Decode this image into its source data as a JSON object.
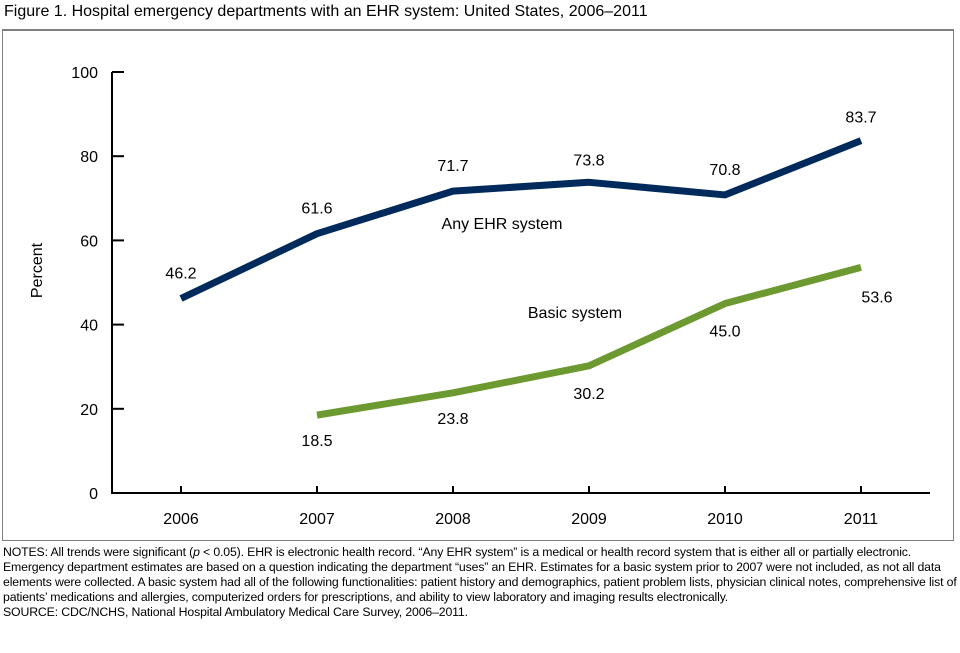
{
  "figure": {
    "title": "Figure 1. Hospital emergency departments with an EHR system: United States, 2006–2011"
  },
  "chart_data": {
    "type": "line",
    "title": "Figure 1. Hospital emergency departments with an EHR system: United States, 2006–2011",
    "xlabel": "",
    "ylabel": "Percent",
    "x": [
      "2006",
      "2007",
      "2008",
      "2009",
      "2010",
      "2011"
    ],
    "ylim": [
      0,
      100
    ],
    "yticks": [
      0,
      20,
      40,
      60,
      80,
      100
    ],
    "grid": false,
    "legend": "inline labels",
    "series": [
      {
        "name": "Any EHR system",
        "color": "#002a5c",
        "values": [
          46.2,
          61.6,
          71.7,
          73.8,
          70.8,
          83.7
        ],
        "labels": [
          "46.2",
          "61.6",
          "71.7",
          "73.8",
          "70.8",
          "83.7"
        ]
      },
      {
        "name": "Basic system",
        "color": "#6d9a30",
        "values": [
          null,
          18.5,
          23.8,
          30.2,
          45.0,
          53.6
        ],
        "labels": [
          "",
          "18.5",
          "23.8",
          "30.2",
          "45.0",
          "53.6"
        ]
      }
    ]
  },
  "notes": {
    "text_before_p": "NOTES: All trends were significant (",
    "p_symbol": "p",
    "text_after_p": " < 0.05). EHR is electronic health record. “Any EHR system” is a medical or health record system that is either all or partially electronic. Emergency department estimates are based on a question indicating the department “uses” an EHR. Estimates for a basic system prior to 2007 were not included, as not all data elements were collected. A basic system had all of the following functionalities: patient history and demographics, patient problem lists, physician clinical notes, comprehensive list of patients’ medications and allergies, computerized orders for prescriptions, and ability to view laboratory and imaging results electronically.",
    "source": "SOURCE: CDC/NCHS, National Hospital Ambulatory Medical Care Survey, 2006–2011."
  }
}
